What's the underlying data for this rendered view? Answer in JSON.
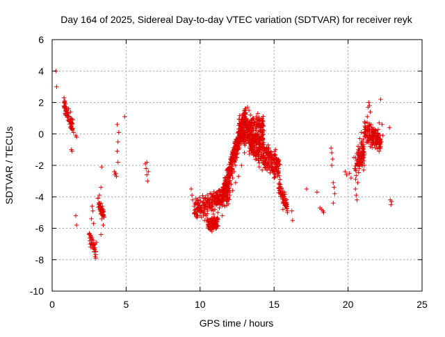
{
  "chart_data": {
    "type": "scatter",
    "title": "Day 164 of 2025, Sidereal Day-to-day VTEC variation (SDTVAR) for receiver reyk",
    "xlabel": "GPS time / hours",
    "ylabel": "SDTVAR / TECUs",
    "xlim": [
      0,
      25
    ],
    "ylim": [
      -10,
      6
    ],
    "xticks": [
      0,
      5,
      10,
      15,
      20,
      25
    ],
    "yticks": [
      -10,
      -8,
      -6,
      -4,
      -2,
      0,
      2,
      4,
      6
    ],
    "grid": true,
    "marker": "+",
    "series": [
      {
        "name": "SDTVAR",
        "color": "#e00000",
        "points": [
          [
            0.25,
            4.0
          ],
          [
            0.3,
            3.0
          ],
          [
            0.8,
            2.3
          ],
          [
            0.85,
            2.1
          ],
          [
            0.9,
            1.9
          ],
          [
            0.95,
            1.7
          ],
          [
            1.0,
            1.5
          ],
          [
            1.05,
            1.3
          ],
          [
            1.1,
            1.6
          ],
          [
            1.15,
            1.1
          ],
          [
            1.2,
            0.8
          ],
          [
            1.25,
            1.4
          ],
          [
            1.3,
            0.5
          ],
          [
            1.35,
            0.3
          ],
          [
            1.4,
            0.9
          ],
          [
            1.45,
            0.1
          ],
          [
            1.3,
            -1.0
          ],
          [
            1.35,
            -1.1
          ],
          [
            1.6,
            -0.1
          ],
          [
            1.65,
            -0.2
          ],
          [
            1.6,
            -5.2
          ],
          [
            1.65,
            -5.8
          ],
          [
            2.5,
            -6.4
          ],
          [
            2.55,
            -6.8
          ],
          [
            2.6,
            -7.2
          ],
          [
            2.62,
            -6.6
          ],
          [
            2.65,
            -5.4
          ],
          [
            2.7,
            -4.6
          ],
          [
            2.75,
            -4.9
          ],
          [
            2.8,
            -5.7
          ],
          [
            2.85,
            -7.5
          ],
          [
            2.9,
            -7.8
          ],
          [
            2.95,
            -7.9
          ],
          [
            3.0,
            -6.9
          ],
          [
            3.1,
            -4.1
          ],
          [
            3.15,
            -4.4
          ],
          [
            3.2,
            -3.9
          ],
          [
            3.25,
            -4.8
          ],
          [
            3.3,
            -5.1
          ],
          [
            3.35,
            -5.4
          ],
          [
            3.4,
            -4.6
          ],
          [
            3.45,
            -5.8
          ],
          [
            3.5,
            -5.3
          ],
          [
            3.3,
            -3.4
          ],
          [
            3.35,
            -2.1
          ],
          [
            3.3,
            -6.4
          ],
          [
            4.2,
            -2.4
          ],
          [
            4.25,
            -2.6
          ],
          [
            4.3,
            -2.5
          ],
          [
            4.35,
            -2.7
          ],
          [
            4.4,
            0.6
          ],
          [
            4.45,
            -0.5
          ],
          [
            4.4,
            -1.1
          ],
          [
            4.45,
            -1.8
          ],
          [
            4.5,
            0.1
          ],
          [
            4.9,
            1.1
          ],
          [
            6.3,
            -1.9
          ],
          [
            6.35,
            -2.2
          ],
          [
            6.4,
            -2.6
          ],
          [
            6.45,
            -3.0
          ],
          [
            6.4,
            -1.8
          ],
          [
            6.5,
            -2.4
          ],
          [
            9.4,
            -3.5
          ],
          [
            9.45,
            -3.9
          ],
          [
            9.5,
            -4.2
          ],
          [
            9.6,
            -4.6
          ],
          [
            9.7,
            -4.8
          ],
          [
            9.8,
            -5.0
          ],
          [
            9.9,
            -4.7
          ],
          [
            10.0,
            -5.2
          ],
          [
            10.1,
            -5.3
          ],
          [
            10.2,
            -5.0
          ],
          [
            10.3,
            -5.5
          ],
          [
            10.4,
            -5.2
          ],
          [
            10.5,
            -5.4
          ],
          [
            10.6,
            -5.9
          ],
          [
            10.7,
            -6.1
          ],
          [
            10.8,
            -6.2
          ],
          [
            10.9,
            -6.0
          ],
          [
            11.0,
            -5.8
          ],
          [
            11.1,
            -5.4
          ],
          [
            11.2,
            -5.0
          ],
          [
            11.3,
            -4.7
          ],
          [
            11.4,
            -4.3
          ],
          [
            11.5,
            -4.5
          ],
          [
            11.6,
            -4.2
          ],
          [
            11.7,
            -4.0
          ],
          [
            11.8,
            -4.3
          ],
          [
            11.9,
            -4.1
          ],
          [
            12.0,
            -3.9
          ],
          [
            10.8,
            -5.5
          ],
          [
            10.9,
            -5.1
          ],
          [
            11.0,
            -4.8
          ],
          [
            11.1,
            -4.5
          ],
          [
            11.2,
            -4.2
          ],
          [
            11.3,
            -3.9
          ],
          [
            11.5,
            -5.2
          ],
          [
            11.7,
            -3.6
          ],
          [
            11.9,
            -3.5
          ],
          [
            12.0,
            -3.0
          ],
          [
            12.1,
            -3.2
          ],
          [
            12.2,
            -2.8
          ],
          [
            12.3,
            -2.4
          ],
          [
            12.4,
            -2.0
          ],
          [
            12.5,
            -1.5
          ],
          [
            12.6,
            -1.0
          ],
          [
            12.7,
            -0.4
          ],
          [
            12.8,
            0.3
          ],
          [
            12.9,
            0.8
          ],
          [
            13.0,
            1.3
          ],
          [
            13.1,
            1.6
          ],
          [
            13.2,
            1.7
          ],
          [
            13.3,
            1.5
          ],
          [
            13.4,
            1.2
          ],
          [
            13.5,
            0.9
          ],
          [
            13.6,
            1.0
          ],
          [
            13.7,
            0.7
          ],
          [
            13.8,
            1.1
          ],
          [
            13.9,
            1.3
          ],
          [
            14.0,
            0.8
          ],
          [
            14.1,
            0.4
          ],
          [
            14.2,
            0.6
          ],
          [
            14.3,
            0.2
          ],
          [
            12.2,
            -3.6
          ],
          [
            12.4,
            -3.1
          ],
          [
            12.6,
            -2.7
          ],
          [
            12.8,
            -2.0
          ],
          [
            13.0,
            -1.2
          ],
          [
            13.1,
            -0.6
          ],
          [
            13.2,
            -0.2
          ],
          [
            13.4,
            0.1
          ],
          [
            13.5,
            -0.5
          ],
          [
            13.7,
            -1.1
          ],
          [
            13.8,
            -1.6
          ],
          [
            14.0,
            -2.1
          ],
          [
            14.2,
            -2.3
          ],
          [
            14.4,
            -1.8
          ],
          [
            14.5,
            -0.9
          ],
          [
            14.6,
            -0.7
          ],
          [
            14.7,
            -1.3
          ],
          [
            14.8,
            -1.9
          ],
          [
            14.9,
            -2.4
          ],
          [
            15.0,
            -2.8
          ],
          [
            15.1,
            -1.0
          ],
          [
            15.2,
            -1.6
          ],
          [
            15.3,
            -2.2
          ],
          [
            15.4,
            -2.9
          ],
          [
            15.5,
            -3.5
          ],
          [
            15.6,
            -3.9
          ],
          [
            15.7,
            -4.2
          ],
          [
            15.8,
            -4.6
          ],
          [
            15.9,
            -5.0
          ],
          [
            15.6,
            -4.8
          ],
          [
            15.7,
            -3.7
          ],
          [
            16.2,
            -4.9
          ],
          [
            16.25,
            -5.5
          ],
          [
            17.2,
            -3.5
          ],
          [
            17.9,
            -3.7
          ],
          [
            18.1,
            -4.7
          ],
          [
            18.2,
            -4.8
          ],
          [
            18.3,
            -4.9
          ],
          [
            18.35,
            -5.0
          ],
          [
            18.85,
            -0.9
          ],
          [
            18.9,
            -1.2
          ],
          [
            18.95,
            -1.6
          ],
          [
            18.9,
            -2.0
          ],
          [
            19.0,
            -3.1
          ],
          [
            19.05,
            -3.4
          ],
          [
            19.1,
            -3.8
          ],
          [
            19.0,
            -4.4
          ],
          [
            19.8,
            -2.4
          ],
          [
            19.9,
            -2.6
          ],
          [
            20.1,
            -2.5
          ],
          [
            20.2,
            -2.8
          ],
          [
            20.4,
            -1.5
          ],
          [
            20.45,
            -2.2
          ],
          [
            20.5,
            -3.5
          ],
          [
            20.55,
            -3.9
          ],
          [
            20.6,
            -4.2
          ],
          [
            20.65,
            -3.1
          ],
          [
            20.7,
            -1.0
          ],
          [
            20.8,
            -0.3
          ],
          [
            20.9,
            0.1
          ],
          [
            20.95,
            -0.8
          ],
          [
            21.0,
            -1.7
          ],
          [
            21.05,
            -2.3
          ],
          [
            21.1,
            -2.0
          ],
          [
            21.3,
            1.1
          ],
          [
            21.35,
            1.7
          ],
          [
            21.4,
            2.0
          ],
          [
            21.45,
            1.8
          ],
          [
            21.5,
            1.4
          ],
          [
            21.55,
            0.6
          ],
          [
            21.6,
            0.3
          ],
          [
            21.65,
            -0.1
          ],
          [
            21.7,
            -0.4
          ],
          [
            21.8,
            0.2
          ],
          [
            21.9,
            -0.6
          ],
          [
            22.0,
            -0.9
          ],
          [
            22.1,
            -1.1
          ],
          [
            22.2,
            -0.8
          ],
          [
            22.25,
            -0.5
          ],
          [
            22.1,
            0.7
          ],
          [
            22.2,
            2.2
          ],
          [
            22.3,
            0.6
          ],
          [
            22.35,
            -0.1
          ],
          [
            22.8,
            0.4
          ],
          [
            22.85,
            -4.2
          ],
          [
            22.9,
            -4.5
          ],
          [
            22.95,
            -4.3
          ]
        ],
        "dense_segments": [
          {
            "x_from": 9.6,
            "x_to": 12.0,
            "y_center_from": -4.8,
            "y_center_to": -3.8,
            "spread": 1.0,
            "count": 220
          },
          {
            "x_from": 10.5,
            "x_to": 11.2,
            "y_center_from": -5.8,
            "y_center_to": -5.6,
            "spread": 0.6,
            "count": 90
          },
          {
            "x_from": 11.5,
            "x_to": 13.1,
            "y_center_from": -4.0,
            "y_center_to": 1.3,
            "spread": 1.1,
            "count": 320
          },
          {
            "x_from": 12.6,
            "x_to": 14.3,
            "y_center_from": 0.2,
            "y_center_to": 0.2,
            "spread": 1.4,
            "count": 260
          },
          {
            "x_from": 13.3,
            "x_to": 15.4,
            "y_center_from": -0.5,
            "y_center_to": -2.2,
            "spread": 1.3,
            "count": 260
          },
          {
            "x_from": 15.3,
            "x_to": 15.9,
            "y_center_from": -3.4,
            "y_center_to": -4.6,
            "spread": 0.7,
            "count": 60
          },
          {
            "x_from": 20.5,
            "x_to": 21.1,
            "y_center_from": -2.0,
            "y_center_to": -1.0,
            "spread": 1.4,
            "count": 90
          },
          {
            "x_from": 21.1,
            "x_to": 22.2,
            "y_center_from": 0.2,
            "y_center_to": -0.6,
            "spread": 1.1,
            "count": 140
          },
          {
            "x_from": 0.8,
            "x_to": 1.4,
            "y_center_from": 1.8,
            "y_center_to": 0.4,
            "spread": 0.6,
            "count": 50
          },
          {
            "x_from": 3.1,
            "x_to": 3.5,
            "y_center_from": -4.4,
            "y_center_to": -5.2,
            "spread": 0.6,
            "count": 40
          },
          {
            "x_from": 2.5,
            "x_to": 2.95,
            "y_center_from": -6.5,
            "y_center_to": -7.4,
            "spread": 0.6,
            "count": 35
          }
        ]
      }
    ]
  }
}
